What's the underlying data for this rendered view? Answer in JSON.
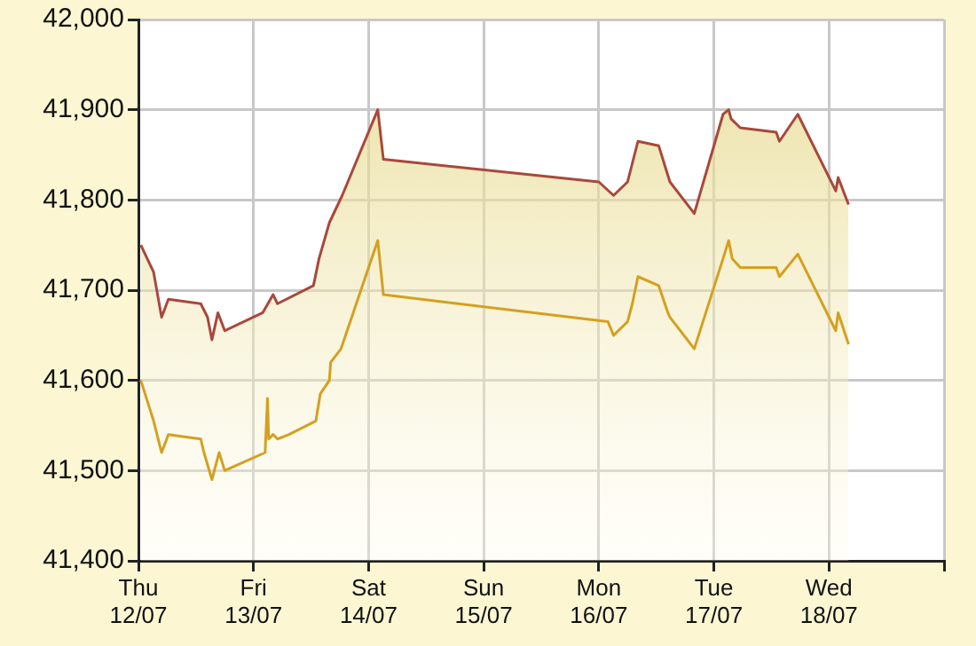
{
  "chart_data": {
    "type": "line",
    "xlim": [
      "--07-12",
      "--07-19"
    ],
    "xticks": [
      {
        "value": "--07-12",
        "label": "Thu 12/07"
      },
      {
        "value": "--07-13",
        "label": "Fri 13/07"
      },
      {
        "value": "--07-14",
        "label": "Sat 14/07"
      },
      {
        "value": "--07-15",
        "label": "Sun 15/07"
      },
      {
        "value": "--07-16",
        "label": "Mon 16/07"
      },
      {
        "value": "--07-17",
        "label": "Tue 17/07"
      },
      {
        "value": "--07-18",
        "label": "Wed 18/07"
      },
      {
        "value": "--07-19",
        "label": null
      }
    ],
    "ylim": [
      41400,
      42000
    ],
    "yticks": [
      {
        "value": 41400,
        "label": "41,400"
      },
      {
        "value": 41500,
        "label": "41,500"
      },
      {
        "value": 41600,
        "label": "41,600"
      },
      {
        "value": 41700,
        "label": "41,700"
      },
      {
        "value": 41800,
        "label": "41,800"
      },
      {
        "value": 41900,
        "label": "41,900"
      },
      {
        "value": 42000,
        "label": "42,000"
      }
    ],
    "grid": true,
    "legend": false,
    "marker": "none",
    "line_style": "solid",
    "series": [
      {
        "type": "area",
        "color": "#a8483c",
        "x": [
          "--07-12T00:30",
          "--07-12T03:10",
          "--07-12T04:50",
          "--07-12T06:15",
          "--07-12T13:00",
          "--07-12T14:25",
          "--07-12T15:20",
          "--07-12T16:35",
          "--07-12T18:00",
          "--07-13T01:55",
          "--07-13T04:05",
          "--07-13T05:00",
          "--07-13T12:30",
          "--07-13T13:40",
          "--07-13T15:50",
          "--07-13T18:30",
          "--07-14T01:55",
          "--07-14T03:05",
          "--07-16T00:00",
          "--07-16T03:05",
          "--07-16T06:00",
          "--07-16T08:10",
          "--07-16T12:30",
          "--07-16T14:50",
          "--07-16T19:55",
          "--07-17T01:55",
          "--07-17T03:05",
          "--07-17T03:35",
          "--07-17T05:30",
          "--07-17T13:00",
          "--07-17T13:40",
          "--07-17T17:30",
          "--07-18T01:25",
          "--07-18T01:55",
          "--07-18T04:05"
        ],
        "values": [
          41750,
          41720,
          41670,
          41690,
          41685,
          41670,
          41645,
          41675,
          41655,
          41675,
          41695,
          41685,
          41705,
          41735,
          41775,
          41805,
          41900,
          41845,
          41820,
          41805,
          41820,
          41865,
          41860,
          41820,
          41785,
          41895,
          41900,
          41890,
          41880,
          41875,
          41865,
          41895,
          41810,
          41825,
          41795
        ]
      },
      {
        "type": "line",
        "color": "#d4a020",
        "x": [
          "--07-12T00:30",
          "--07-12T03:10",
          "--07-12T04:50",
          "--07-12T06:15",
          "--07-12T13:00",
          "--07-12T13:40",
          "--07-12T15:20",
          "--07-12T16:50",
          "--07-12T18:00",
          "--07-13T02:25",
          "--07-13T02:55",
          "--07-13T03:10",
          "--07-13T04:05",
          "--07-13T05:00",
          "--07-13T07:25",
          "--07-13T13:00",
          "--07-13T13:55",
          "--07-13T15:50",
          "--07-13T16:05",
          "--07-13T18:15",
          "--07-14T01:55",
          "--07-14T03:05",
          "--07-16T01:55",
          "--07-16T03:05",
          "--07-16T06:00",
          "--07-16T07:00",
          "--07-16T08:10",
          "--07-16T12:30",
          "--07-16T14:25",
          "--07-16T14:50",
          "--07-16T19:55",
          "--07-17T01:55",
          "--07-17T03:05",
          "--07-17T03:50",
          "--07-17T05:30",
          "--07-17T13:00",
          "--07-17T13:40",
          "--07-17T17:30",
          "--07-18T01:25",
          "--07-18T01:55",
          "--07-18T04:05"
        ],
        "values": [
          41600,
          41555,
          41520,
          41540,
          41535,
          41520,
          41490,
          41520,
          41500,
          41520,
          41580,
          41535,
          41540,
          41535,
          41540,
          41555,
          41585,
          41600,
          41620,
          41635,
          41755,
          41695,
          41665,
          41650,
          41665,
          41685,
          41715,
          41705,
          41675,
          41670,
          41635,
          41735,
          41755,
          41735,
          41725,
          41725,
          41715,
          41740,
          41655,
          41675,
          41640
        ]
      }
    ]
  }
}
